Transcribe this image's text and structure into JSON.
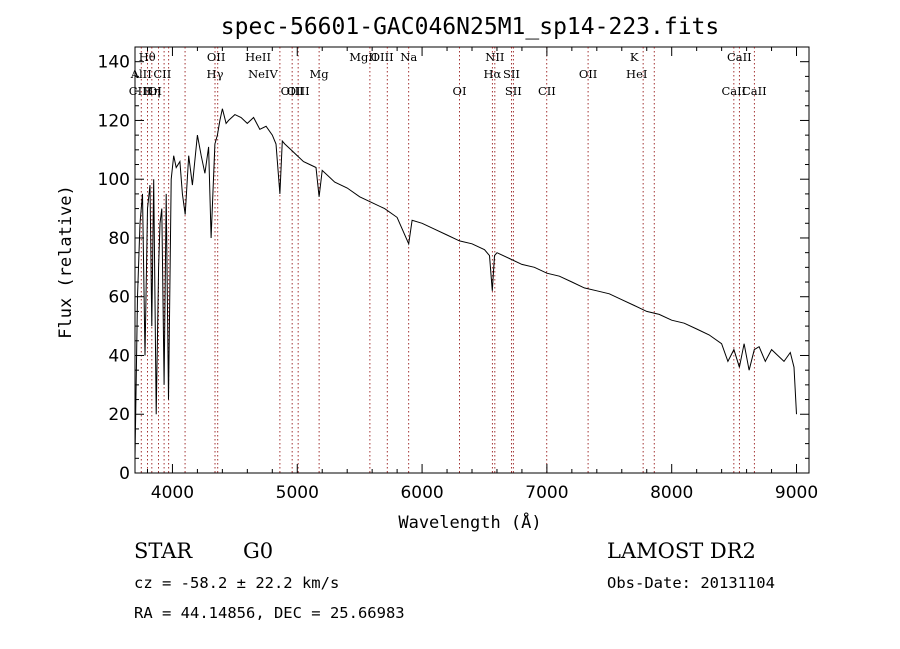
{
  "header": {
    "title": "spec-56601-GAC046N25M1_sp14-223.fits"
  },
  "info": {
    "class": "STAR",
    "subclass": "G0",
    "survey": "LAMOST DR2",
    "redshift": "cz = -58.2 ± 22.2 km/s",
    "obs_date": "Obs-Date: 20131104",
    "coords": "RA =  44.14856, DEC =  25.66983"
  },
  "colors": {
    "spectrum": "#000000",
    "line_marker": "#8b0000"
  },
  "chart_data": {
    "type": "line",
    "title": "spec-56601-GAC046N25M1_sp14-223.fits",
    "xlabel": "Wavelength (Å)",
    "ylabel": "Flux (relative)",
    "xlim": [
      3700,
      9100
    ],
    "ylim": [
      0,
      145
    ],
    "x_ticks": [
      4000,
      5000,
      6000,
      7000,
      8000,
      9000
    ],
    "y_ticks": [
      0,
      20,
      40,
      60,
      80,
      100,
      120,
      140
    ],
    "grid": false,
    "series": [
      {
        "x": [
          3700,
          3720,
          3740,
          3760,
          3780,
          3800,
          3820,
          3835,
          3850,
          3870,
          3889,
          3900,
          3915,
          3933,
          3950,
          3968,
          3990,
          4010,
          4030,
          4060,
          4080,
          4102,
          4130,
          4160,
          4200,
          4230,
          4260,
          4290,
          4310,
          4340,
          4360,
          4380,
          4400,
          4430,
          4450,
          4500,
          4550,
          4600,
          4650,
          4700,
          4750,
          4800,
          4830,
          4861,
          4880,
          4900,
          4950,
          5000,
          5050,
          5100,
          5150,
          5175,
          5200,
          5250,
          5300,
          5400,
          5500,
          5600,
          5700,
          5800,
          5893,
          5920,
          6000,
          6100,
          6200,
          6300,
          6400,
          6500,
          6540,
          6563,
          6580,
          6600,
          6700,
          6800,
          6900,
          7000,
          7100,
          7200,
          7300,
          7400,
          7500,
          7600,
          7700,
          7800,
          7900,
          8000,
          8100,
          8200,
          8300,
          8400,
          8450,
          8498,
          8542,
          8580,
          8620,
          8662,
          8700,
          8750,
          8800,
          8850,
          8900,
          8950,
          8980,
          9000
        ],
        "values": [
          5,
          60,
          85,
          95,
          40,
          90,
          98,
          50,
          100,
          20,
          70,
          85,
          90,
          30,
          95,
          25,
          100,
          108,
          104,
          106,
          95,
          88,
          108,
          98,
          115,
          108,
          102,
          111,
          80,
          112,
          115,
          120,
          124,
          119,
          120,
          122,
          121,
          119,
          121,
          117,
          118,
          115,
          112,
          95,
          113,
          112,
          110,
          108,
          106,
          105,
          104,
          94,
          103,
          101,
          99,
          97,
          94,
          92,
          90,
          87,
          78,
          86,
          85,
          83,
          81,
          79,
          78,
          76,
          74,
          62,
          74,
          75,
          73,
          71,
          70,
          68,
          67,
          65,
          63,
          62,
          61,
          59,
          57,
          55,
          54,
          52,
          51,
          49,
          47,
          44,
          38,
          42,
          36,
          44,
          35,
          42,
          43,
          38,
          42,
          40,
          38,
          41,
          36,
          20
        ]
      }
    ],
    "spectral_lines": [
      {
        "label": "Hθ",
        "x": 3798,
        "row": 1
      },
      {
        "label": "AlII",
        "x": 3750,
        "row": 2
      },
      {
        "label": "CIII",
        "x": 3740,
        "row": 3
      },
      {
        "label": "Hη",
        "x": 3836,
        "row": 3
      },
      {
        "label": "OI",
        "x": 3860,
        "row": 3
      },
      {
        "label": "CII",
        "x": 3919,
        "row": 2
      },
      {
        "label": "OII",
        "x": 4350,
        "row": 1
      },
      {
        "label": "Hγ",
        "x": 4341,
        "row": 2
      },
      {
        "label": "HeII",
        "x": 4686,
        "row": 1
      },
      {
        "label": "NeIV",
        "x": 4725,
        "row": 2
      },
      {
        "label": "OIII",
        "x": 4959,
        "row": 3
      },
      {
        "label": "OIII",
        "x": 5007,
        "row": 3
      },
      {
        "label": "Mg",
        "x": 5175,
        "row": 2
      },
      {
        "label": "MgII",
        "x": 5530,
        "row": 1
      },
      {
        "label": "OIII",
        "x": 5680,
        "row": 1
      },
      {
        "label": "Na",
        "x": 5893,
        "row": 1
      },
      {
        "label": "OI",
        "x": 6300,
        "row": 3
      },
      {
        "label": "NII",
        "x": 6583,
        "row": 1
      },
      {
        "label": "Hα",
        "x": 6563,
        "row": 2
      },
      {
        "label": "SII",
        "x": 6716,
        "row": 2
      },
      {
        "label": "SII",
        "x": 6731,
        "row": 3
      },
      {
        "label": "CII",
        "x": 7000,
        "row": 3
      },
      {
        "label": "OII",
        "x": 7330,
        "row": 2
      },
      {
        "label": "K",
        "x": 7699,
        "row": 1
      },
      {
        "label": "HeI",
        "x": 7720,
        "row": 2
      },
      {
        "label": "CaII",
        "x": 8542,
        "row": 1
      },
      {
        "label": "CaII",
        "x": 8498,
        "row": 3
      },
      {
        "label": "CaII",
        "x": 8662,
        "row": 3
      }
    ],
    "marker_lines_x": [
      3750,
      3800,
      3835,
      3889,
      3933,
      3970,
      4101,
      4341,
      4363,
      4861,
      4959,
      5007,
      5175,
      5582,
      5721,
      5893,
      6300,
      6563,
      6583,
      6716,
      6731,
      6999,
      7330,
      7771,
      7860,
      8498,
      8542,
      8662
    ]
  }
}
